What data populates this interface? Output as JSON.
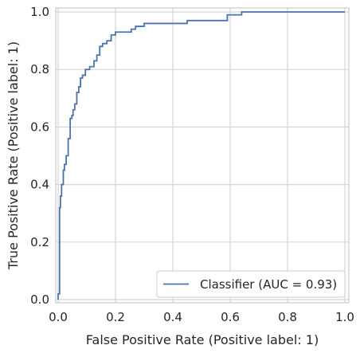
{
  "chart_data": {
    "type": "line",
    "xlabel": "False Positive Rate (Positive label: 1)",
    "ylabel": "True Positive Rate (Positive label: 1)",
    "xlim": [
      0.0,
      1.0
    ],
    "ylim": [
      0.0,
      1.0
    ],
    "xticks": [
      "0.0",
      "0.2",
      "0.4",
      "0.6",
      "0.8",
      "1.0"
    ],
    "yticks": [
      "0.0",
      "0.2",
      "0.4",
      "0.6",
      "0.8",
      "1.0"
    ],
    "grid": true,
    "legend_position": "lower-right",
    "series": [
      {
        "name": "Classifier (AUC = 0.93)",
        "color": "#4c72b0",
        "x": [
          0.0,
          0.0,
          0.005,
          0.005,
          0.008,
          0.008,
          0.012,
          0.012,
          0.018,
          0.018,
          0.022,
          0.022,
          0.028,
          0.028,
          0.035,
          0.035,
          0.042,
          0.042,
          0.048,
          0.048,
          0.052,
          0.052,
          0.058,
          0.058,
          0.065,
          0.065,
          0.072,
          0.072,
          0.078,
          0.078,
          0.085,
          0.085,
          0.095,
          0.095,
          0.11,
          0.11,
          0.125,
          0.125,
          0.135,
          0.135,
          0.145,
          0.145,
          0.155,
          0.155,
          0.17,
          0.17,
          0.185,
          0.185,
          0.2,
          0.2,
          0.255,
          0.255,
          0.27,
          0.27,
          0.3,
          0.3,
          0.45,
          0.45,
          0.59,
          0.59,
          0.64,
          0.64,
          1.0
        ],
        "y": [
          0.0,
          0.02,
          0.02,
          0.32,
          0.32,
          0.36,
          0.36,
          0.4,
          0.4,
          0.45,
          0.45,
          0.47,
          0.47,
          0.5,
          0.5,
          0.56,
          0.56,
          0.63,
          0.63,
          0.64,
          0.64,
          0.66,
          0.66,
          0.68,
          0.68,
          0.72,
          0.72,
          0.74,
          0.74,
          0.77,
          0.77,
          0.78,
          0.78,
          0.8,
          0.8,
          0.81,
          0.81,
          0.83,
          0.83,
          0.85,
          0.85,
          0.88,
          0.88,
          0.89,
          0.89,
          0.9,
          0.9,
          0.92,
          0.92,
          0.93,
          0.93,
          0.94,
          0.94,
          0.95,
          0.95,
          0.96,
          0.96,
          0.97,
          0.97,
          0.99,
          0.99,
          1.0,
          1.0
        ]
      }
    ]
  }
}
